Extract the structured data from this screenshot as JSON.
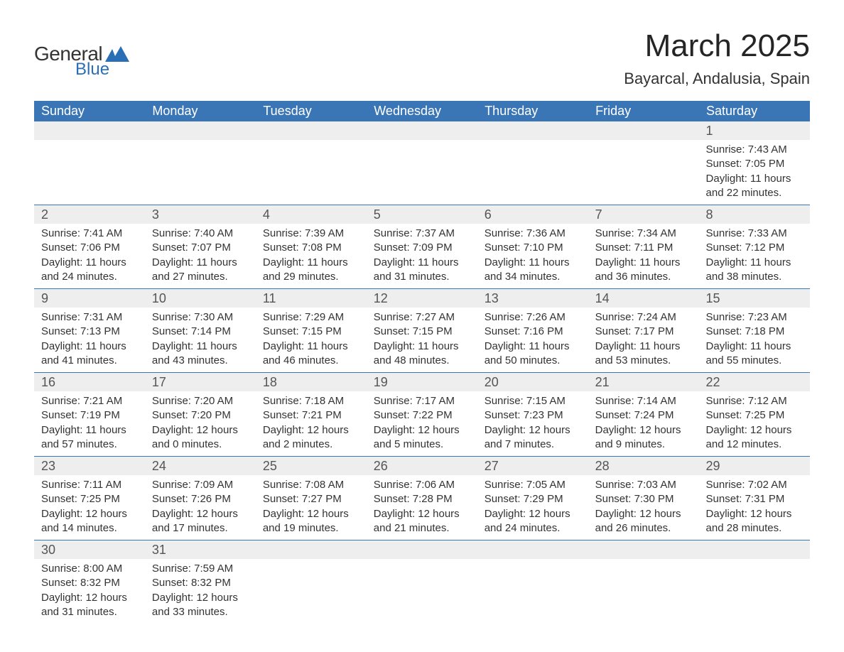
{
  "brand": {
    "text_general": "General",
    "text_blue": "Blue",
    "logo_color": "#2a6fb5"
  },
  "header": {
    "month_title": "March 2025",
    "location": "Bayarcal, Andalusia, Spain"
  },
  "calendar": {
    "day_headers": [
      "Sunday",
      "Monday",
      "Tuesday",
      "Wednesday",
      "Thursday",
      "Friday",
      "Saturday"
    ],
    "header_bg": "#3a76b6",
    "header_fg": "#ffffff",
    "daynum_bg": "#eeeeee",
    "row_divider": "#3a76b6",
    "first_day_column": 6,
    "num_days": 31,
    "days": [
      {
        "n": 1,
        "sunrise": "7:43 AM",
        "sunset": "7:05 PM",
        "daylight": "11 hours and 22 minutes."
      },
      {
        "n": 2,
        "sunrise": "7:41 AM",
        "sunset": "7:06 PM",
        "daylight": "11 hours and 24 minutes."
      },
      {
        "n": 3,
        "sunrise": "7:40 AM",
        "sunset": "7:07 PM",
        "daylight": "11 hours and 27 minutes."
      },
      {
        "n": 4,
        "sunrise": "7:39 AM",
        "sunset": "7:08 PM",
        "daylight": "11 hours and 29 minutes."
      },
      {
        "n": 5,
        "sunrise": "7:37 AM",
        "sunset": "7:09 PM",
        "daylight": "11 hours and 31 minutes."
      },
      {
        "n": 6,
        "sunrise": "7:36 AM",
        "sunset": "7:10 PM",
        "daylight": "11 hours and 34 minutes."
      },
      {
        "n": 7,
        "sunrise": "7:34 AM",
        "sunset": "7:11 PM",
        "daylight": "11 hours and 36 minutes."
      },
      {
        "n": 8,
        "sunrise": "7:33 AM",
        "sunset": "7:12 PM",
        "daylight": "11 hours and 38 minutes."
      },
      {
        "n": 9,
        "sunrise": "7:31 AM",
        "sunset": "7:13 PM",
        "daylight": "11 hours and 41 minutes."
      },
      {
        "n": 10,
        "sunrise": "7:30 AM",
        "sunset": "7:14 PM",
        "daylight": "11 hours and 43 minutes."
      },
      {
        "n": 11,
        "sunrise": "7:29 AM",
        "sunset": "7:15 PM",
        "daylight": "11 hours and 46 minutes."
      },
      {
        "n": 12,
        "sunrise": "7:27 AM",
        "sunset": "7:15 PM",
        "daylight": "11 hours and 48 minutes."
      },
      {
        "n": 13,
        "sunrise": "7:26 AM",
        "sunset": "7:16 PM",
        "daylight": "11 hours and 50 minutes."
      },
      {
        "n": 14,
        "sunrise": "7:24 AM",
        "sunset": "7:17 PM",
        "daylight": "11 hours and 53 minutes."
      },
      {
        "n": 15,
        "sunrise": "7:23 AM",
        "sunset": "7:18 PM",
        "daylight": "11 hours and 55 minutes."
      },
      {
        "n": 16,
        "sunrise": "7:21 AM",
        "sunset": "7:19 PM",
        "daylight": "11 hours and 57 minutes."
      },
      {
        "n": 17,
        "sunrise": "7:20 AM",
        "sunset": "7:20 PM",
        "daylight": "12 hours and 0 minutes."
      },
      {
        "n": 18,
        "sunrise": "7:18 AM",
        "sunset": "7:21 PM",
        "daylight": "12 hours and 2 minutes."
      },
      {
        "n": 19,
        "sunrise": "7:17 AM",
        "sunset": "7:22 PM",
        "daylight": "12 hours and 5 minutes."
      },
      {
        "n": 20,
        "sunrise": "7:15 AM",
        "sunset": "7:23 PM",
        "daylight": "12 hours and 7 minutes."
      },
      {
        "n": 21,
        "sunrise": "7:14 AM",
        "sunset": "7:24 PM",
        "daylight": "12 hours and 9 minutes."
      },
      {
        "n": 22,
        "sunrise": "7:12 AM",
        "sunset": "7:25 PM",
        "daylight": "12 hours and 12 minutes."
      },
      {
        "n": 23,
        "sunrise": "7:11 AM",
        "sunset": "7:25 PM",
        "daylight": "12 hours and 14 minutes."
      },
      {
        "n": 24,
        "sunrise": "7:09 AM",
        "sunset": "7:26 PM",
        "daylight": "12 hours and 17 minutes."
      },
      {
        "n": 25,
        "sunrise": "7:08 AM",
        "sunset": "7:27 PM",
        "daylight": "12 hours and 19 minutes."
      },
      {
        "n": 26,
        "sunrise": "7:06 AM",
        "sunset": "7:28 PM",
        "daylight": "12 hours and 21 minutes."
      },
      {
        "n": 27,
        "sunrise": "7:05 AM",
        "sunset": "7:29 PM",
        "daylight": "12 hours and 24 minutes."
      },
      {
        "n": 28,
        "sunrise": "7:03 AM",
        "sunset": "7:30 PM",
        "daylight": "12 hours and 26 minutes."
      },
      {
        "n": 29,
        "sunrise": "7:02 AM",
        "sunset": "7:31 PM",
        "daylight": "12 hours and 28 minutes."
      },
      {
        "n": 30,
        "sunrise": "8:00 AM",
        "sunset": "8:32 PM",
        "daylight": "12 hours and 31 minutes."
      },
      {
        "n": 31,
        "sunrise": "7:59 AM",
        "sunset": "8:32 PM",
        "daylight": "12 hours and 33 minutes."
      }
    ],
    "labels": {
      "sunrise_prefix": "Sunrise: ",
      "sunset_prefix": "Sunset: ",
      "daylight_prefix": "Daylight: "
    }
  }
}
